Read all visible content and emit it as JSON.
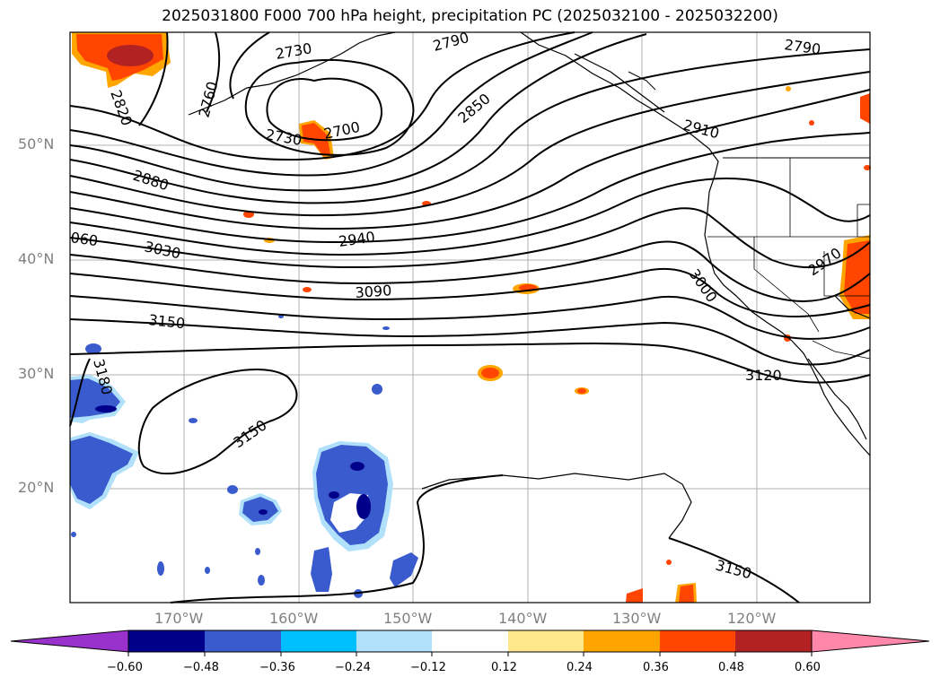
{
  "title": "2025031800 F000 700 hPa height, precipitation PC (2025032100 - 2025032200)",
  "latitude_labels": [
    "50°N",
    "40°N",
    "30°N",
    "20°N"
  ],
  "longitude_labels": [
    "170°W",
    "160°W",
    "150°W",
    "140°W",
    "130°W",
    "120°W"
  ],
  "contour_labels": [
    "2730",
    "2760",
    "2820",
    "2790",
    "2790",
    "2730",
    "2700",
    "2850",
    "2910",
    "2880",
    "060",
    "3030",
    "2940",
    "3090",
    "3000",
    "2970",
    "3150",
    "3180",
    "3120",
    "3150",
    "3150"
  ],
  "colorbar": {
    "ticks": [
      "−0.60",
      "−0.48",
      "−0.36",
      "−0.24",
      "−0.12",
      "0.12",
      "0.24",
      "0.36",
      "0.48",
      "0.60"
    ],
    "colors": [
      "#9932cc",
      "#00008b",
      "#3a5bcd",
      "#00bfff",
      "#b0e0fa",
      "#ffffff",
      "#ffe88c",
      "#ffa500",
      "#ff4500",
      "#b22222",
      "#ff88aa"
    ]
  },
  "colors": {
    "grid": "#b0b0b0",
    "contour": "#000000",
    "positive_anomaly": "#ff4500",
    "negative_anomaly": "#3a5bcd"
  }
}
